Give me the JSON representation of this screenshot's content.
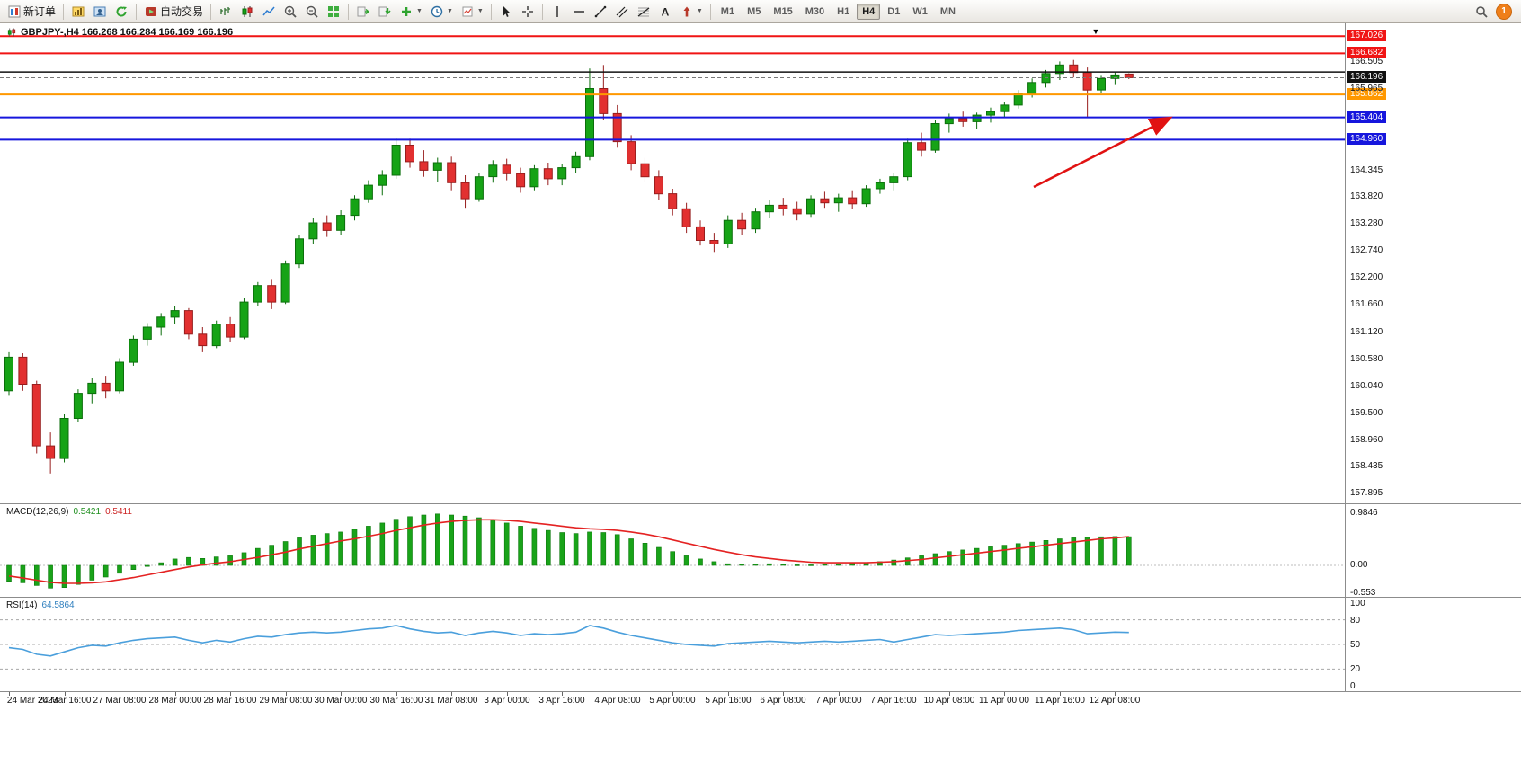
{
  "toolbar": {
    "new_order_label": "新订单",
    "autotrading_label": "自动交易",
    "timeframes": [
      "M1",
      "M5",
      "M15",
      "M30",
      "H1",
      "H4",
      "D1",
      "W1",
      "MN"
    ],
    "active_timeframe": "H4",
    "notification_count": "1",
    "groups": [
      [
        {
          "icon": "new-order",
          "label": "新订单"
        }
      ],
      [
        {
          "icon": "charts"
        },
        {
          "icon": "profiles"
        },
        {
          "icon": "refresh"
        }
      ],
      [
        {
          "icon": "autotrading",
          "label": "自动交易"
        }
      ],
      [
        {
          "icon": "bar-chart"
        },
        {
          "icon": "candlestick-chart"
        },
        {
          "icon": "line-chart"
        },
        {
          "icon": "zoom-in"
        },
        {
          "icon": "zoom-out"
        },
        {
          "icon": "tile-windows"
        }
      ],
      [
        {
          "icon": "scroll-to-end"
        },
        {
          "icon": "chart-shift"
        },
        {
          "icon": "indicators",
          "caret": true
        },
        {
          "icon": "periods",
          "caret": true
        },
        {
          "icon": "templates",
          "caret": true
        }
      ],
      [
        {
          "icon": "cursor"
        },
        {
          "icon": "crosshair"
        }
      ],
      [
        {
          "icon": "vertical-line"
        },
        {
          "icon": "horizontal-line"
        },
        {
          "icon": "trendline"
        },
        {
          "icon": "equidistant-channel"
        },
        {
          "icon": "fibonacci"
        },
        {
          "icon": "text"
        },
        {
          "icon": "arrows",
          "caret": true
        }
      ]
    ]
  },
  "chart": {
    "title": "GBPJPY-,H4 166.268 166.284 166.169 166.196",
    "symbol": "GBPJPY-",
    "period": "H4"
  },
  "indicators": {
    "macd": {
      "label": "MACD(12,26,9)",
      "value1": "0.5421",
      "value2": "0.5411",
      "scale": [
        "0.9846",
        "0.00",
        "-0.553"
      ]
    },
    "rsi": {
      "label": "RSI(14)",
      "value": "64.5864",
      "scale": [
        "100",
        "80",
        "50",
        "20",
        "0"
      ]
    }
  },
  "price_axis": {
    "scale_labels": [
      "166.505",
      "165.965",
      "164.345",
      "163.820",
      "163.280",
      "162.740",
      "162.200",
      "161.660",
      "161.120",
      "160.580",
      "160.040",
      "159.500",
      "158.960",
      "158.435",
      "157.895"
    ]
  },
  "hlines": [
    {
      "price": 167.026,
      "label": "167.026",
      "color": "#f01414",
      "width": 2,
      "badge": true
    },
    {
      "price": 166.682,
      "label": "166.682",
      "color": "#f01414",
      "width": 2,
      "badge": true
    },
    {
      "price": 166.31,
      "label": "166.310",
      "color": "#111111",
      "width": 1.5,
      "badge": false
    },
    {
      "price": 166.196,
      "label": "166.196",
      "color": "#777777",
      "width": 1,
      "dash": true,
      "badge": true,
      "badge_color": "#111111"
    },
    {
      "price": 165.862,
      "label": "165.862",
      "color": "#ff9800",
      "width": 2,
      "badge": true
    },
    {
      "price": 165.404,
      "label": "165.404",
      "color": "#1616dd",
      "width": 2,
      "badge": true
    },
    {
      "price": 164.96,
      "label": "164.960",
      "color": "#1616dd",
      "width": 2,
      "badge": true
    }
  ],
  "time_axis": {
    "labels": [
      {
        "text": "24 Mar 2023",
        "bar": 0
      },
      {
        "text": "24 Mar 16:00",
        "bar": 4
      },
      {
        "text": "27 Mar 08:00",
        "bar": 8
      },
      {
        "text": "28 Mar 00:00",
        "bar": 12
      },
      {
        "text": "28 Mar 16:00",
        "bar": 16
      },
      {
        "text": "29 Mar 08:00",
        "bar": 20
      },
      {
        "text": "30 Mar 00:00",
        "bar": 24
      },
      {
        "text": "30 Mar 16:00",
        "bar": 28
      },
      {
        "text": "31 Mar 08:00",
        "bar": 32
      },
      {
        "text": "3 Apr 00:00",
        "bar": 36
      },
      {
        "text": "3 Apr 16:00",
        "bar": 40
      },
      {
        "text": "4 Apr 08:00",
        "bar": 44
      },
      {
        "text": "5 Apr 00:00",
        "bar": 48
      },
      {
        "text": "5 Apr 16:00",
        "bar": 52
      },
      {
        "text": "6 Apr 08:00",
        "bar": 56
      },
      {
        "text": "7 Apr 00:00",
        "bar": 60
      },
      {
        "text": "7 Apr 16:00",
        "bar": 64
      },
      {
        "text": "10 Apr 08:00",
        "bar": 68
      },
      {
        "text": "11 Apr 00:00",
        "bar": 72
      },
      {
        "text": "11 Apr 16:00",
        "bar": 76
      },
      {
        "text": "12 Apr 08:00",
        "bar": 80
      }
    ]
  },
  "annotations": {
    "trend_arrow": {
      "from": {
        "bar": 74.1,
        "price": 164.02
      },
      "to": {
        "bar": 83.9,
        "price": 165.38
      },
      "color": "#e11212"
    },
    "top_marker": {
      "bar": 78.6,
      "glyph": "▼"
    }
  },
  "colors": {
    "bull": "#16a316",
    "bull_edge": "#0b6e0b",
    "bear": "#e23030",
    "bear_edge": "#971d1d",
    "macd_hist": "#19a319",
    "macd_hist_edge": "#0e7a0e",
    "macd_signal": "#e42222",
    "rsi_line": "#4a9fdc",
    "level_dash": "#a8a8a8",
    "axis_text": "#111111"
  },
  "chart_data": [
    {
      "type": "candlestick",
      "name": "GBPJPY- H4",
      "ylim": [
        157.705,
        167.28
      ],
      "bars": 82,
      "candles": [
        [
          159.95,
          160.72,
          159.85,
          160.62
        ],
        [
          160.62,
          160.7,
          159.95,
          160.08
        ],
        [
          160.08,
          160.15,
          158.7,
          158.85
        ],
        [
          158.85,
          159.12,
          158.3,
          158.6
        ],
        [
          158.6,
          159.48,
          158.52,
          159.4
        ],
        [
          159.4,
          159.98,
          159.32,
          159.9
        ],
        [
          159.9,
          160.2,
          159.7,
          160.1
        ],
        [
          160.1,
          160.25,
          159.8,
          159.95
        ],
        [
          159.95,
          160.6,
          159.9,
          160.52
        ],
        [
          160.52,
          161.05,
          160.45,
          160.98
        ],
        [
          160.98,
          161.3,
          160.85,
          161.22
        ],
        [
          161.22,
          161.5,
          161.05,
          161.42
        ],
        [
          161.42,
          161.65,
          161.28,
          161.55
        ],
        [
          161.55,
          161.6,
          160.98,
          161.08
        ],
        [
          161.08,
          161.22,
          160.72,
          160.85
        ],
        [
          160.85,
          161.35,
          160.8,
          161.28
        ],
        [
          161.28,
          161.42,
          160.92,
          161.02
        ],
        [
          161.02,
          161.8,
          160.98,
          161.72
        ],
        [
          161.72,
          162.12,
          161.65,
          162.05
        ],
        [
          162.05,
          162.18,
          161.58,
          161.72
        ],
        [
          161.72,
          162.55,
          161.68,
          162.48
        ],
        [
          162.48,
          163.05,
          162.4,
          162.98
        ],
        [
          162.98,
          163.4,
          162.88,
          163.3
        ],
        [
          163.3,
          163.45,
          163.02,
          163.15
        ],
        [
          163.15,
          163.55,
          163.05,
          163.45
        ],
        [
          163.45,
          163.85,
          163.35,
          163.78
        ],
        [
          163.78,
          164.15,
          163.7,
          164.05
        ],
        [
          164.05,
          164.35,
          163.85,
          164.25
        ],
        [
          164.25,
          165.0,
          164.18,
          164.85
        ],
        [
          164.85,
          164.98,
          164.4,
          164.52
        ],
        [
          164.52,
          164.75,
          164.22,
          164.35
        ],
        [
          164.35,
          164.6,
          164.12,
          164.5
        ],
        [
          164.5,
          164.62,
          163.95,
          164.1
        ],
        [
          164.1,
          164.25,
          163.6,
          163.78
        ],
        [
          163.78,
          164.3,
          163.72,
          164.22
        ],
        [
          164.22,
          164.55,
          164.1,
          164.45
        ],
        [
          164.45,
          164.58,
          164.15,
          164.28
        ],
        [
          164.28,
          164.4,
          163.9,
          164.02
        ],
        [
          164.02,
          164.45,
          163.95,
          164.38
        ],
        [
          164.38,
          164.5,
          164.05,
          164.18
        ],
        [
          164.18,
          164.48,
          164.05,
          164.4
        ],
        [
          164.4,
          164.72,
          164.3,
          164.62
        ],
        [
          164.62,
          166.38,
          164.55,
          165.98
        ],
        [
          165.98,
          166.45,
          165.35,
          165.48
        ],
        [
          165.48,
          165.65,
          164.8,
          164.92
        ],
        [
          164.92,
          165.05,
          164.35,
          164.48
        ],
        [
          164.48,
          164.6,
          164.1,
          164.22
        ],
        [
          164.22,
          164.35,
          163.75,
          163.88
        ],
        [
          163.88,
          163.98,
          163.45,
          163.58
        ],
        [
          163.58,
          163.7,
          163.1,
          163.22
        ],
        [
          163.22,
          163.35,
          162.85,
          162.95
        ],
        [
          162.95,
          163.1,
          162.72,
          162.88
        ],
        [
          162.88,
          163.45,
          162.8,
          163.35
        ],
        [
          163.35,
          163.5,
          163.05,
          163.18
        ],
        [
          163.18,
          163.6,
          163.1,
          163.52
        ],
        [
          163.52,
          163.75,
          163.4,
          163.65
        ],
        [
          163.65,
          163.8,
          163.45,
          163.58
        ],
        [
          163.58,
          163.72,
          163.35,
          163.48
        ],
        [
          163.48,
          163.85,
          163.42,
          163.78
        ],
        [
          163.78,
          163.92,
          163.6,
          163.7
        ],
        [
          163.7,
          163.88,
          163.52,
          163.8
        ],
        [
          163.8,
          163.95,
          163.58,
          163.68
        ],
        [
          163.68,
          164.05,
          163.62,
          163.98
        ],
        [
          163.98,
          164.18,
          163.88,
          164.1
        ],
        [
          164.1,
          164.3,
          163.95,
          164.22
        ],
        [
          164.22,
          164.98,
          164.15,
          164.9
        ],
        [
          164.9,
          165.1,
          164.62,
          164.75
        ],
        [
          164.75,
          165.35,
          164.7,
          165.28
        ],
        [
          165.28,
          165.48,
          165.1,
          165.38
        ],
        [
          165.38,
          165.52,
          165.22,
          165.32
        ],
        [
          165.32,
          165.5,
          165.18,
          165.45
        ],
        [
          165.45,
          165.6,
          165.3,
          165.52
        ],
        [
          165.52,
          165.72,
          165.4,
          165.65
        ],
        [
          165.65,
          165.95,
          165.58,
          165.88
        ],
        [
          165.88,
          166.18,
          165.8,
          166.1
        ],
        [
          166.1,
          166.35,
          166.0,
          166.28
        ],
        [
          166.28,
          166.52,
          166.15,
          166.45
        ],
        [
          166.45,
          166.55,
          166.2,
          166.3
        ],
        [
          166.3,
          166.4,
          165.4,
          165.95
        ],
        [
          165.95,
          166.25,
          165.9,
          166.18
        ],
        [
          166.18,
          166.3,
          166.05,
          166.25
        ],
        [
          166.268,
          166.284,
          166.169,
          166.196
        ]
      ]
    },
    {
      "type": "bar",
      "name": "MACD(12,26,9)",
      "ylim": [
        -0.594,
        1.154
      ],
      "series": [
        {
          "name": "histogram",
          "values": [
            -0.3,
            -0.33,
            -0.38,
            -0.43,
            -0.42,
            -0.36,
            -0.28,
            -0.22,
            -0.15,
            -0.08,
            -0.02,
            0.05,
            0.12,
            0.15,
            0.13,
            0.16,
            0.18,
            0.24,
            0.32,
            0.38,
            0.45,
            0.52,
            0.57,
            0.6,
            0.63,
            0.68,
            0.74,
            0.8,
            0.87,
            0.92,
            0.95,
            0.97,
            0.95,
            0.93,
            0.9,
            0.86,
            0.8,
            0.74,
            0.7,
            0.66,
            0.62,
            0.6,
            0.63,
            0.62,
            0.58,
            0.5,
            0.42,
            0.34,
            0.26,
            0.18,
            0.12,
            0.07,
            0.03,
            0.02,
            0.02,
            0.03,
            0.02,
            0.01,
            0.01,
            0.02,
            0.03,
            0.04,
            0.05,
            0.07,
            0.1,
            0.14,
            0.18,
            0.22,
            0.26,
            0.29,
            0.32,
            0.35,
            0.38,
            0.41,
            0.44,
            0.47,
            0.5,
            0.52,
            0.53,
            0.54,
            0.545,
            0.5421
          ]
        },
        {
          "name": "signal",
          "values": [
            -0.2,
            -0.24,
            -0.28,
            -0.32,
            -0.34,
            -0.34,
            -0.33,
            -0.31,
            -0.27,
            -0.23,
            -0.18,
            -0.13,
            -0.08,
            -0.03,
            0.01,
            0.04,
            0.07,
            0.11,
            0.15,
            0.2,
            0.25,
            0.31,
            0.36,
            0.41,
            0.46,
            0.5,
            0.55,
            0.6,
            0.66,
            0.71,
            0.76,
            0.8,
            0.83,
            0.85,
            0.86,
            0.86,
            0.85,
            0.83,
            0.8,
            0.77,
            0.74,
            0.71,
            0.69,
            0.68,
            0.66,
            0.63,
            0.59,
            0.54,
            0.48,
            0.42,
            0.36,
            0.3,
            0.25,
            0.2,
            0.16,
            0.13,
            0.1,
            0.08,
            0.06,
            0.05,
            0.05,
            0.05,
            0.05,
            0.06,
            0.07,
            0.09,
            0.11,
            0.14,
            0.17,
            0.2,
            0.23,
            0.26,
            0.29,
            0.32,
            0.35,
            0.38,
            0.41,
            0.44,
            0.47,
            0.5,
            0.52,
            0.5411
          ]
        }
      ]
    },
    {
      "type": "line",
      "name": "RSI(14)",
      "ylim": [
        0,
        100
      ],
      "display_ylim": [
        -7,
        107
      ],
      "levels": [
        80,
        50,
        20
      ],
      "values": [
        46,
        44,
        38,
        36,
        41,
        46,
        49,
        48,
        52,
        55,
        57,
        58,
        59,
        55,
        52,
        55,
        53,
        57,
        60,
        59,
        62,
        64,
        65,
        64,
        65,
        67,
        69,
        70,
        73,
        69,
        66,
        64,
        65,
        61,
        64,
        66,
        64,
        61,
        63,
        62,
        63,
        65,
        73,
        70,
        65,
        61,
        58,
        55,
        52,
        50,
        49,
        48,
        51,
        52,
        53,
        54,
        53,
        52,
        53,
        54,
        53,
        54,
        55,
        56,
        53,
        56,
        59,
        62,
        61,
        62,
        63,
        64,
        65,
        67,
        68,
        69,
        70,
        68,
        63,
        64,
        65,
        64.59
      ]
    }
  ]
}
